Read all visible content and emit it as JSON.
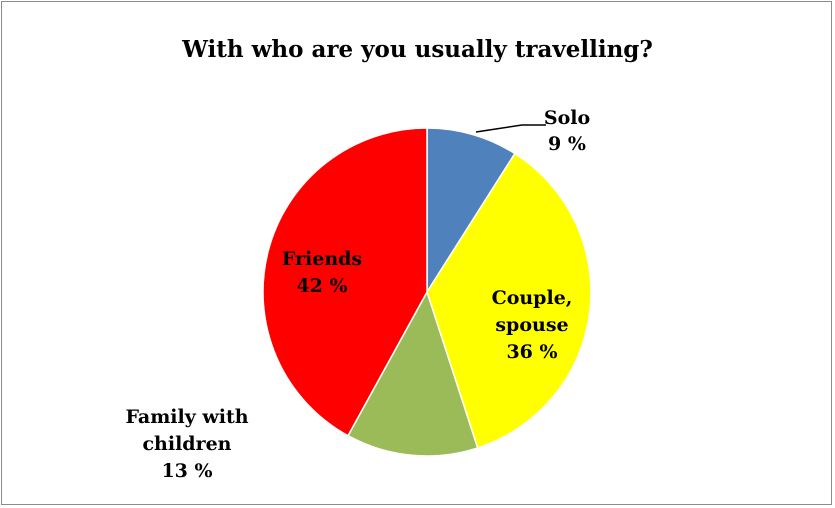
{
  "chart_data": {
    "type": "pie",
    "title": "With who are you usually travelling?",
    "slices": [
      {
        "lines": [
          "Solo",
          "9 %"
        ],
        "value": 9,
        "color": "#4f81bd"
      },
      {
        "lines": [
          "Couple,",
          "spouse",
          "36 %"
        ],
        "value": 36,
        "color": "#ffff00"
      },
      {
        "lines": [
          "Family with",
          "children",
          "13 %"
        ],
        "value": 13,
        "color": "#9bbb59"
      },
      {
        "lines": [
          "Friends",
          "42 %"
        ],
        "value": 42,
        "color": "#ff0000"
      }
    ]
  }
}
